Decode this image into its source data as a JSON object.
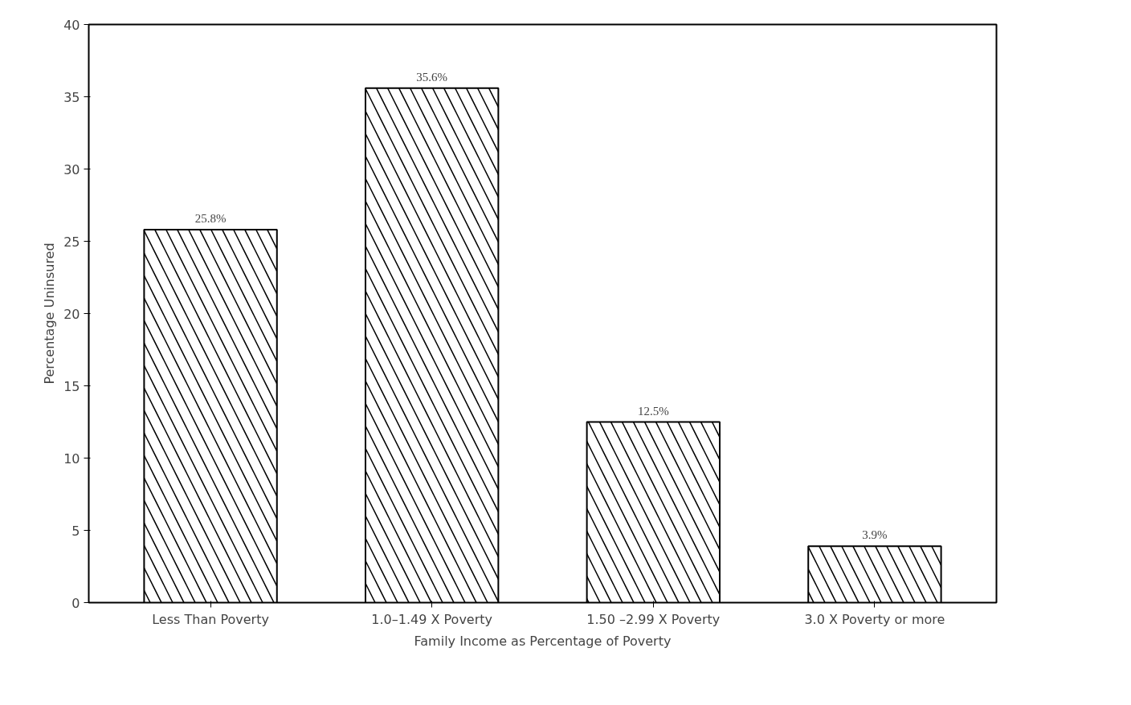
{
  "chart_data": {
    "type": "bar",
    "xlabel": "Family Income as Percentage of Poverty",
    "ylabel": "Percentage Uninsured",
    "categories": [
      "Less Than Poverty",
      "1.0–1.49 X Poverty",
      "1.50 –2.99 X Poverty",
      "3.0 X Poverty or more"
    ],
    "values": [
      25.8,
      35.6,
      12.5,
      3.9
    ],
    "value_labels": [
      "25.8%",
      "35.6%",
      "12.5%",
      "3.9%"
    ],
    "color": "#ffffff",
    "ylim": [
      0,
      40
    ],
    "yticks": [
      0,
      5,
      10,
      15,
      20,
      25,
      30,
      35,
      40
    ],
    "grid": false
  }
}
